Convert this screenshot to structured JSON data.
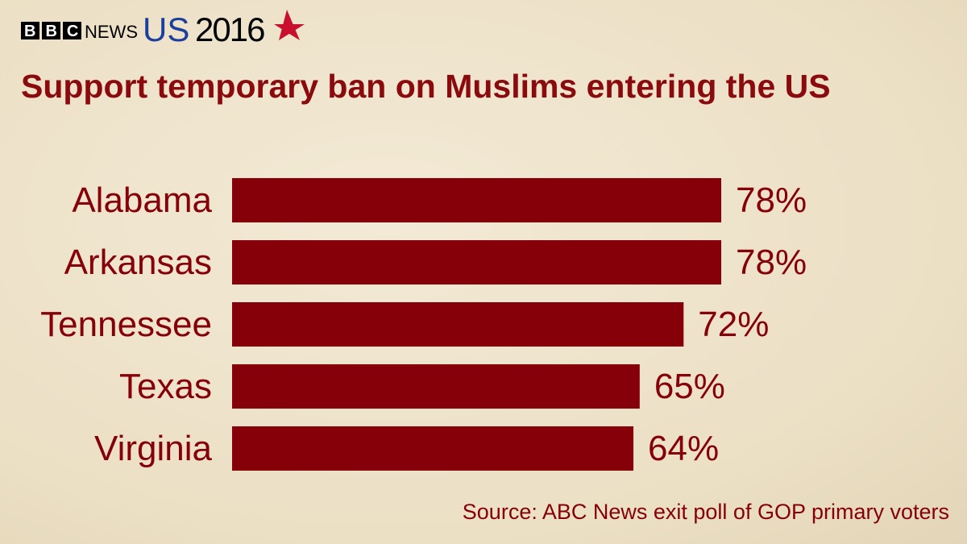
{
  "logo": {
    "bbc": "BBC",
    "news": "NEWS",
    "us": "US",
    "year": "2016"
  },
  "chart_data": {
    "type": "bar",
    "orientation": "horizontal",
    "title": "Support temporary ban on Muslims entering the US",
    "categories": [
      "Alabama",
      "Arkansas",
      "Tennessee",
      "Texas",
      "Virginia"
    ],
    "values": [
      78,
      78,
      72,
      65,
      64
    ],
    "value_labels": [
      "78%",
      "78%",
      "72%",
      "65%",
      "64%"
    ],
    "color": "#850009",
    "source": "Source: ABC News exit poll of GOP primary voters"
  }
}
